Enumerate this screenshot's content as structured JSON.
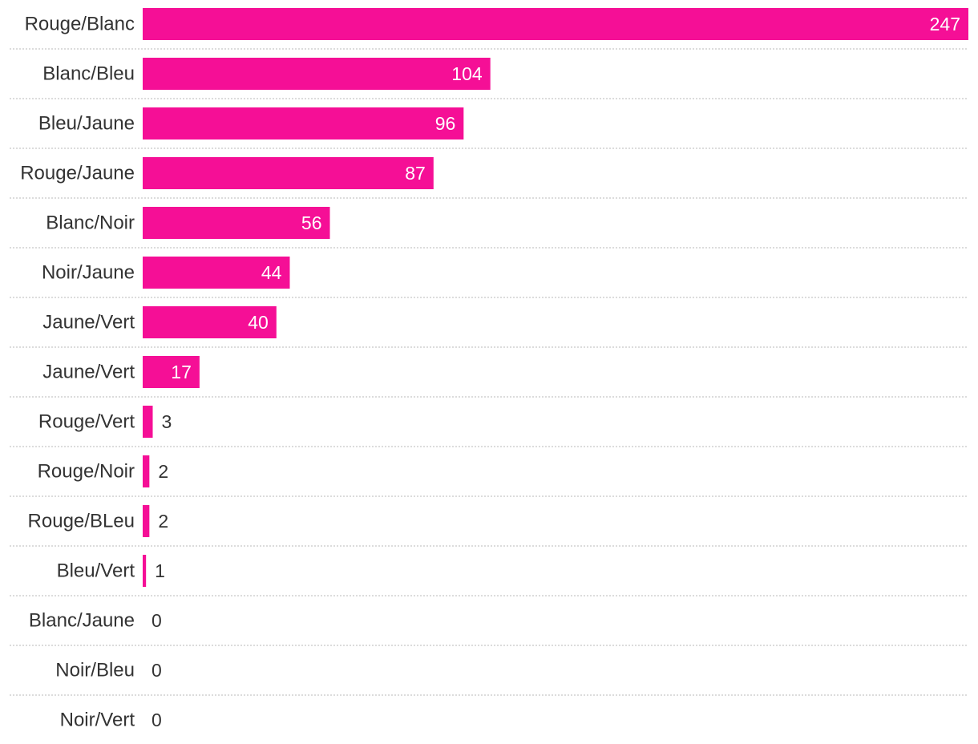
{
  "chart_data": {
    "type": "bar",
    "orientation": "horizontal",
    "categories": [
      "Rouge/Blanc",
      "Blanc/Bleu",
      "Bleu/Jaune",
      "Rouge/Jaune",
      "Blanc/Noir",
      "Noir/Jaune",
      "Jaune/Vert",
      "Jaune/Vert",
      "Rouge/Vert",
      "Rouge/Noir",
      "Rouge/BLeu",
      "Bleu/Vert",
      "Blanc/Jaune",
      "Noir/Bleu",
      "Noir/Vert"
    ],
    "values": [
      247,
      104,
      96,
      87,
      56,
      44,
      40,
      17,
      3,
      2,
      2,
      1,
      0,
      0,
      0
    ],
    "xlim": [
      0,
      247
    ],
    "data_labels": true,
    "grid": false,
    "legend": "none",
    "colors": {
      "bar": "#f50f96",
      "label_inside": "#ffffff",
      "label_outside": "#333333",
      "category_text": "#333333",
      "separator": "#c8c8c8"
    }
  }
}
